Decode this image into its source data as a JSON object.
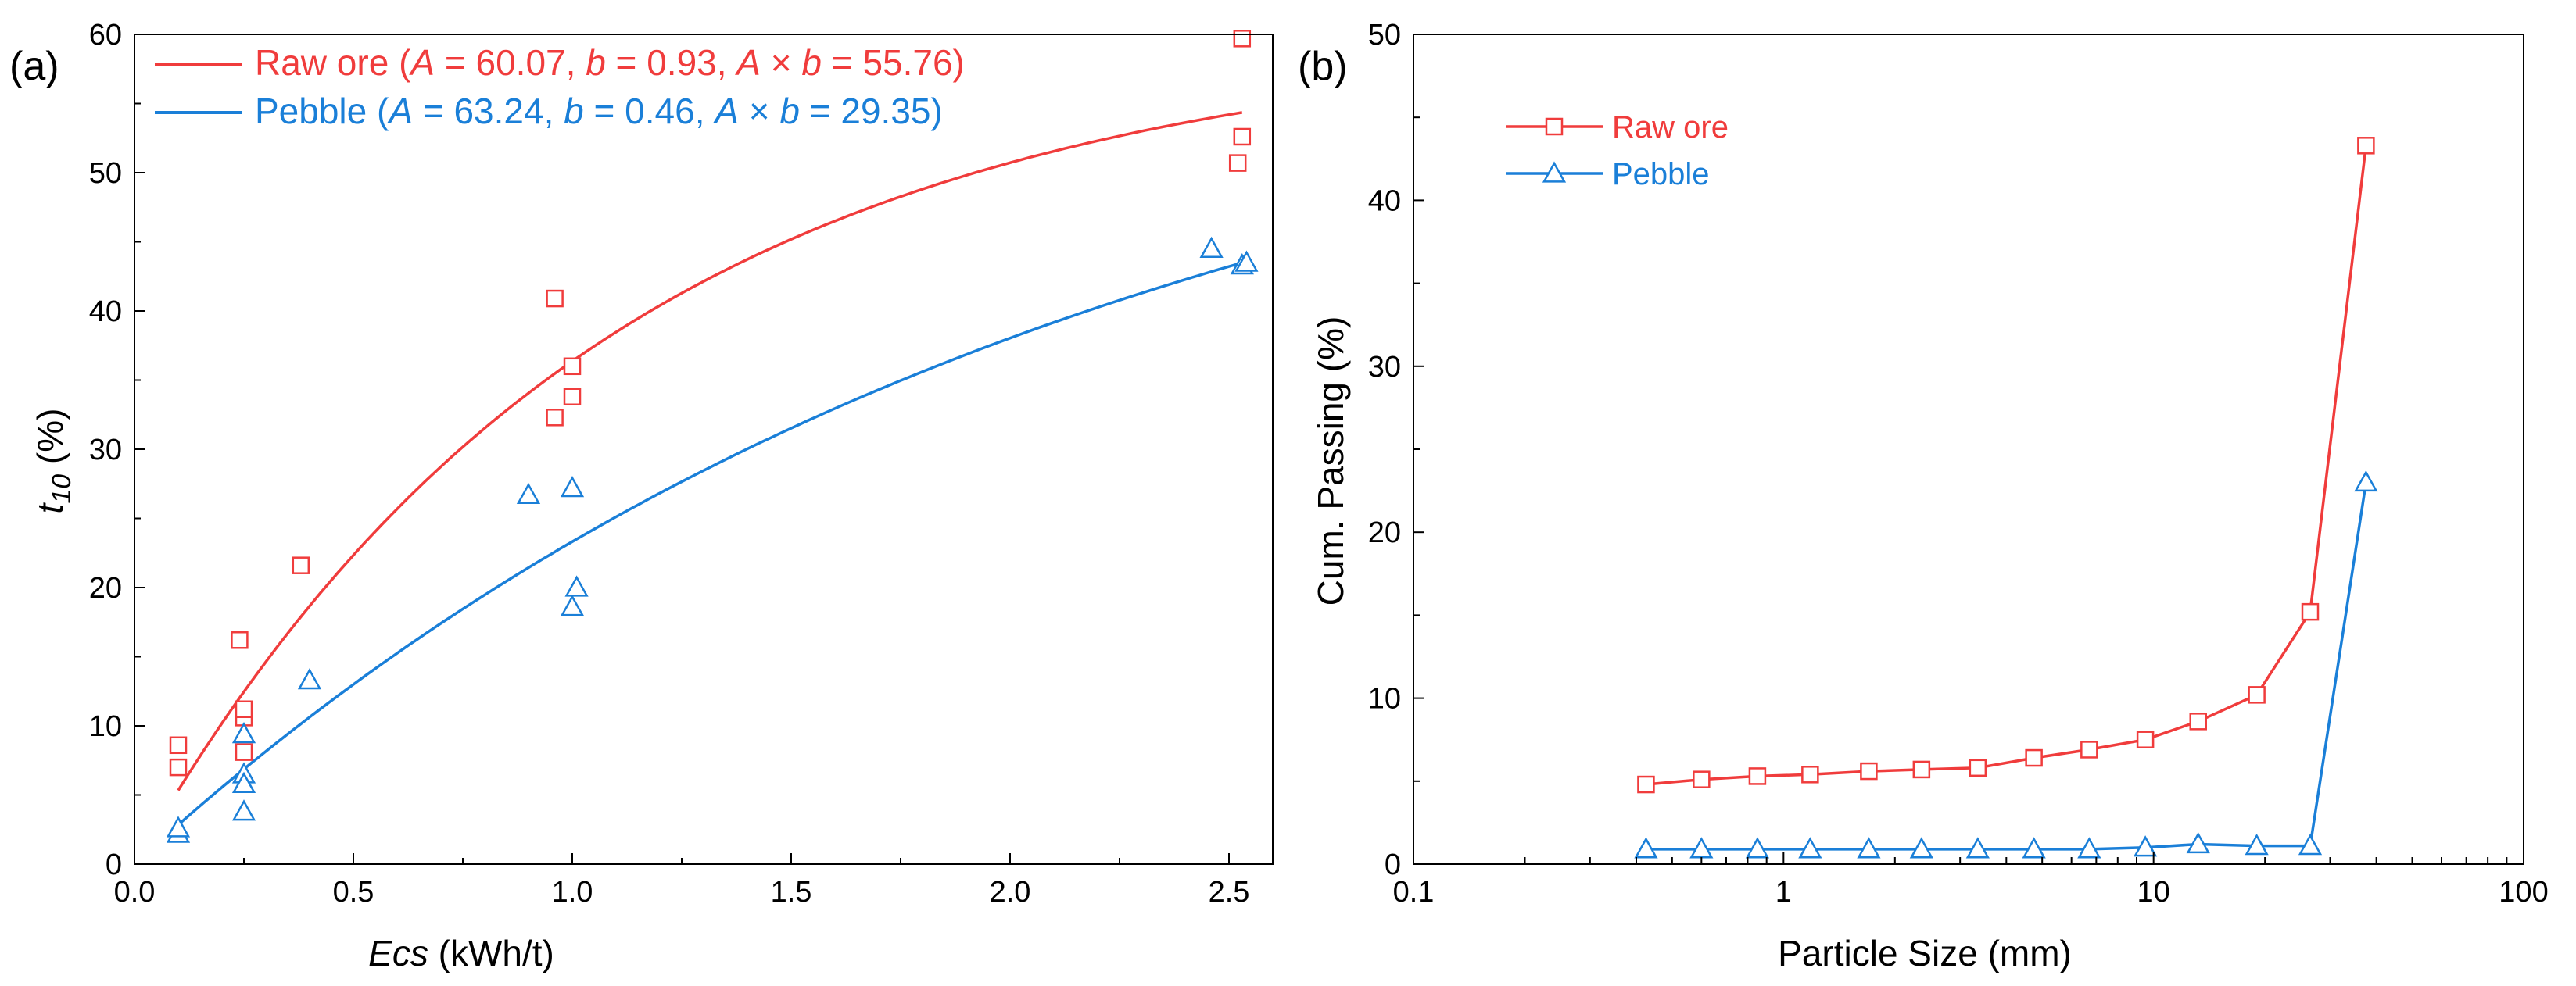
{
  "colors": {
    "raw": "#f03c3c",
    "pebble": "#1a7fd8",
    "axis": "#000000"
  },
  "chart_data": [
    {
      "panel": "(a)",
      "type": "scatter",
      "xlabel_italic": "Ecs",
      "xlabel_rest": " (kWh/t)",
      "ylabel_main": "t",
      "ylabel_sub": "10",
      "ylabel_rest": " (%)",
      "xlim": [
        0.0,
        2.6
      ],
      "ylim": [
        0,
        60
      ],
      "x_ticks": [
        0.0,
        0.5,
        1.0,
        1.5,
        2.0,
        2.5
      ],
      "x_tick_labels": [
        "0.0",
        "0.5",
        "1.0",
        "1.5",
        "2.0",
        "2.5"
      ],
      "y_ticks": [
        0,
        10,
        20,
        30,
        40,
        50,
        60
      ],
      "y_tick_labels": [
        "0",
        "10",
        "20",
        "30",
        "40",
        "50",
        "60"
      ],
      "legend_position": "top-left",
      "series": [
        {
          "name": "Raw ore",
          "legend_parts": [
            {
              "t": "Raw ore (",
              "i": false
            },
            {
              "t": "A",
              "i": true
            },
            {
              "t": " = 60.07, ",
              "i": false
            },
            {
              "t": "b",
              "i": true
            },
            {
              "t": " = 0.93, ",
              "i": false
            },
            {
              "t": "A",
              "i": true
            },
            {
              "t": " × ",
              "i": false
            },
            {
              "t": "b",
              "i": true
            },
            {
              "t": " = 55.76)",
              "i": false
            }
          ],
          "marker": "square",
          "fit": {
            "A": 60.07,
            "b": 0.93,
            "x_range": [
              0.1,
              2.53
            ]
          },
          "points": [
            [
              0.1,
              7.0
            ],
            [
              0.1,
              8.6
            ],
            [
              0.24,
              16.2
            ],
            [
              0.25,
              10.6
            ],
            [
              0.25,
              11.2
            ],
            [
              0.25,
              8.1
            ],
            [
              0.38,
              21.6
            ],
            [
              0.96,
              40.9
            ],
            [
              0.96,
              32.3
            ],
            [
              1.0,
              33.8
            ],
            [
              1.0,
              36.0
            ],
            [
              2.52,
              50.7
            ],
            [
              2.53,
              52.6
            ],
            [
              2.53,
              59.7
            ]
          ]
        },
        {
          "name": "Pebble",
          "legend_parts": [
            {
              "t": "Pebble (",
              "i": false
            },
            {
              "t": "A",
              "i": true
            },
            {
              "t": " = 63.24, ",
              "i": false
            },
            {
              "t": "b",
              "i": true
            },
            {
              "t": " = 0.46, ",
              "i": false
            },
            {
              "t": "A",
              "i": true
            },
            {
              "t": " × ",
              "i": false
            },
            {
              "t": "b",
              "i": true
            },
            {
              "t": " = 29.35)",
              "i": false
            }
          ],
          "marker": "triangle",
          "fit": {
            "A": 63.24,
            "b": 0.46,
            "x_range": [
              0.1,
              2.53
            ]
          },
          "points": [
            [
              0.1,
              2.2
            ],
            [
              0.1,
              2.6
            ],
            [
              0.25,
              9.4
            ],
            [
              0.25,
              6.5
            ],
            [
              0.25,
              5.8
            ],
            [
              0.25,
              3.8
            ],
            [
              0.4,
              13.3
            ],
            [
              0.9,
              26.7
            ],
            [
              1.0,
              27.2
            ],
            [
              1.0,
              18.6
            ],
            [
              1.01,
              20.0
            ],
            [
              2.46,
              44.5
            ],
            [
              2.53,
              43.3
            ],
            [
              2.54,
              43.5
            ]
          ]
        }
      ]
    },
    {
      "panel": "(b)",
      "type": "line",
      "xlabel": "Particle Size (mm)",
      "ylabel": "Cum. Passing (%)",
      "x_scale": "log",
      "xlim": [
        0.1,
        100
      ],
      "ylim": [
        0,
        50
      ],
      "x_ticks": [
        0.1,
        1,
        10,
        100
      ],
      "x_tick_labels": [
        "0.1",
        "1",
        "10",
        "100"
      ],
      "y_ticks": [
        0,
        10,
        20,
        30,
        40,
        50
      ],
      "y_tick_labels": [
        "0",
        "10",
        "20",
        "30",
        "40",
        "50"
      ],
      "legend_position": "top-left",
      "x": [
        0.425,
        0.6,
        0.85,
        1.18,
        1.7,
        2.36,
        3.35,
        4.75,
        6.7,
        9.5,
        13.2,
        19.0,
        26.5,
        37.5
      ],
      "series": [
        {
          "name": "Raw ore",
          "marker": "square",
          "values": [
            4.8,
            5.1,
            5.3,
            5.4,
            5.6,
            5.7,
            5.8,
            6.4,
            6.9,
            7.5,
            8.6,
            10.2,
            15.2,
            43.3
          ]
        },
        {
          "name": "Pebble",
          "marker": "triangle",
          "values": [
            0.9,
            0.9,
            0.9,
            0.9,
            0.9,
            0.9,
            0.9,
            0.9,
            0.9,
            1.0,
            1.2,
            1.1,
            1.1,
            23.0
          ]
        }
      ]
    }
  ]
}
